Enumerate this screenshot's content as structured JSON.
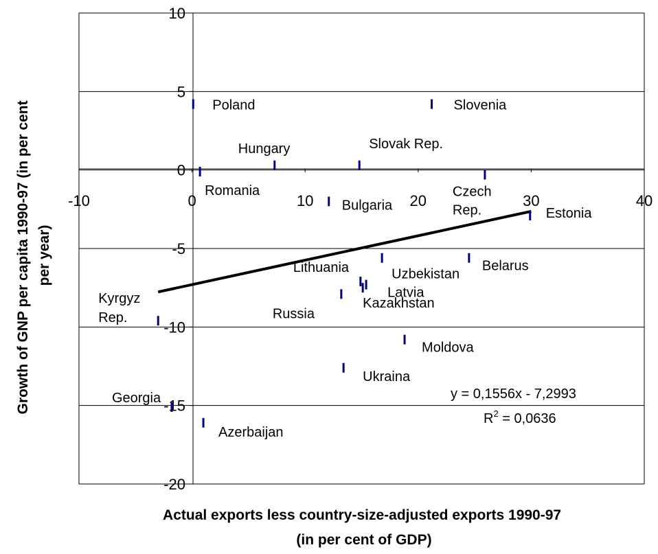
{
  "chart_data": {
    "type": "scatter",
    "xlabel_lines": [
      "Actual exports less country-size-adjusted exports 1990-97",
      "(in per cent of GDP)"
    ],
    "ylabel_lines": [
      "Growth of GNP per capita 1990-97 (in per cent",
      "per year)"
    ],
    "xlim": [
      -10,
      40
    ],
    "ylim": [
      -20,
      10
    ],
    "xticks": [
      "-10",
      "0",
      "10",
      "20",
      "30",
      "40"
    ],
    "yticks": [
      "10",
      "5",
      "0",
      "-5",
      "-10",
      "-15",
      "-20"
    ],
    "grid": "horizontal",
    "marker_color": "#000080",
    "points": [
      {
        "name": "Poland",
        "x": 0.1,
        "y": 4.2
      },
      {
        "name": "Slovenia",
        "x": 21.2,
        "y": 4.2
      },
      {
        "name": "Hungary",
        "x": 7.3,
        "y": 0.3
      },
      {
        "name": "Slovak Rep.",
        "x": 14.8,
        "y": 0.3
      },
      {
        "name": "Romania",
        "x": 0.7,
        "y": -0.1
      },
      {
        "name": "Czech Rep.",
        "x": 25.9,
        "y": -0.3
      },
      {
        "name": "Bulgaria",
        "x": 12.1,
        "y": -2.0
      },
      {
        "name": "Estonia",
        "x": 29.9,
        "y": -2.9
      },
      {
        "name": "Uzbekistan",
        "x": 16.8,
        "y": -5.6
      },
      {
        "name": "Belarus",
        "x": 24.5,
        "y": -5.6
      },
      {
        "name": "Lithuania",
        "x": 14.9,
        "y": -7.1
      },
      {
        "name": "Latvia",
        "x": 15.4,
        "y": -7.3
      },
      {
        "name": "Kazakhstan",
        "x": 15.1,
        "y": -7.5
      },
      {
        "name": "Russia",
        "x": 13.2,
        "y": -7.9
      },
      {
        "name": "Kyrgyz Rep.",
        "x": -3.0,
        "y": -9.6
      },
      {
        "name": "Moldova",
        "x": 18.8,
        "y": -10.8
      },
      {
        "name": "Ukraina",
        "x": 13.4,
        "y": -12.6
      },
      {
        "name": "Georgia",
        "x": -1.8,
        "y": -15.1
      },
      {
        "name": "Azerbaijan",
        "x": 1.0,
        "y": -16.1
      }
    ],
    "trendline": {
      "slope": 0.1556,
      "intercept": -7.2993,
      "x_range": [
        -3.0,
        30.0
      ]
    },
    "equation": "y = 0,1556x - 7,2993",
    "r2_prefix": "R",
    "r2_sup": "2",
    "r2_value": " = 0,0636"
  }
}
